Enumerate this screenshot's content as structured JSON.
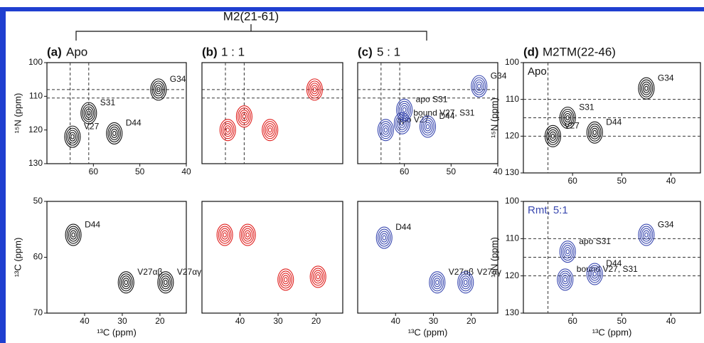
{
  "bracket_label": "M2(21-61)",
  "chart_data": [
    {
      "type": "contour",
      "panel_letter": "(a)",
      "title": "Apo",
      "ylabel": "¹⁵N (ppm)",
      "xlim": [
        70,
        40
      ],
      "ylim": [
        100,
        130
      ],
      "xticks": [
        60,
        50,
        40
      ],
      "yticks": [
        100,
        110,
        120,
        130
      ],
      "vlines": [
        65,
        61
      ],
      "hlines": [
        108,
        110.5
      ],
      "color": "#111111",
      "peaks": {
        "x": [
          64.5,
          61,
          55.5,
          46
        ],
        "y": [
          122,
          115,
          121,
          108
        ],
        "labels": [
          "V27",
          "S31",
          "D44",
          "G34"
        ]
      }
    },
    {
      "type": "contour",
      "panel_letter": "(b)",
      "title": "1 : 1",
      "xlim": [
        70,
        40
      ],
      "ylim": [
        100,
        130
      ],
      "vlines": [
        65,
        61
      ],
      "hlines": [
        108,
        110.5
      ],
      "color": "#e0201e",
      "peaks": {
        "x": [
          64.5,
          61,
          55.5,
          46
        ],
        "y": [
          120,
          116,
          120,
          108
        ],
        "labels": [
          null,
          null,
          null,
          null
        ]
      }
    },
    {
      "type": "contour",
      "panel_letter": "(c)",
      "title": "5 : 1",
      "xlim": [
        70,
        40
      ],
      "ylim": [
        100,
        130
      ],
      "xticks": [
        60,
        50,
        40
      ],
      "vlines": [
        65,
        61
      ],
      "hlines": [
        108,
        110.5
      ],
      "color": "#3a49b0",
      "peaks": {
        "x": [
          64,
          60.5,
          60,
          55,
          44
        ],
        "y": [
          120,
          118,
          114,
          119,
          107
        ],
        "labels": [
          "apo V27",
          "bound V27, S31",
          "apo S31",
          "D44",
          "G34"
        ]
      }
    },
    {
      "type": "contour",
      "panel_letter": "(d)",
      "title": "M2TM(22-46)",
      "inset": "Apo",
      "ylabel": "¹⁵N (ppm)",
      "xlim": [
        70,
        34
      ],
      "ylim": [
        100,
        130
      ],
      "xticks": [
        60,
        50,
        40
      ],
      "yticks": [
        100,
        110,
        120,
        130
      ],
      "vlines": [
        65
      ],
      "hlines": [
        110,
        115,
        120
      ],
      "color": "#111111",
      "peaks": {
        "x": [
          64,
          61,
          55.5,
          45
        ],
        "y": [
          120,
          115,
          119,
          107
        ],
        "labels": [
          "V27",
          "S31",
          "D44",
          "G34"
        ]
      }
    },
    {
      "type": "contour",
      "ylabel": "¹³C (ppm)",
      "xlabel": "¹³C (ppm)",
      "xlim": [
        50,
        13
      ],
      "ylim": [
        50,
        70
      ],
      "xticks": [
        40,
        30,
        20
      ],
      "yticks": [
        50,
        60,
        70
      ],
      "color": "#111111",
      "peaks": {
        "x": [
          43,
          29,
          18.5
        ],
        "y": [
          56,
          64.5,
          64.5
        ],
        "labels": [
          "D44",
          "V27αβ",
          "V27αγ"
        ]
      }
    },
    {
      "type": "contour",
      "xlim": [
        50,
        13
      ],
      "ylim": [
        50,
        70
      ],
      "xticks": [
        40,
        30,
        20
      ],
      "color": "#e0201e",
      "peaks": {
        "x": [
          44,
          38,
          28,
          19.5
        ],
        "y": [
          56,
          56,
          64,
          63.5
        ],
        "labels": [
          null,
          null,
          null,
          null
        ]
      }
    },
    {
      "type": "contour",
      "xlabel": "¹³C (ppm)",
      "xlim": [
        50,
        13
      ],
      "ylim": [
        50,
        70
      ],
      "xticks": [
        40,
        30,
        20
      ],
      "color": "#3a49b0",
      "peaks": {
        "x": [
          43,
          29,
          21.5
        ],
        "y": [
          56.5,
          64.5,
          64.5
        ],
        "labels": [
          "D44",
          "V27αβ",
          "V27αγ"
        ]
      }
    },
    {
      "type": "contour",
      "inset": "Rmt, 5:1",
      "ylabel": "¹⁵N (ppm)",
      "xlabel": "¹³C (ppm)",
      "xlim": [
        70,
        34
      ],
      "ylim": [
        100,
        130
      ],
      "xticks": [
        60,
        50,
        40
      ],
      "yticks": [
        100,
        110,
        120,
        130
      ],
      "vlines": [
        65
      ],
      "hlines": [
        110,
        115,
        120
      ],
      "color": "#3a49b0",
      "peaks": {
        "x": [
          61,
          61.5,
          55.5,
          45
        ],
        "y": [
          113.5,
          121,
          119.5,
          109
        ],
        "labels": [
          "apo S31",
          "bound V27, S31",
          "D44",
          "G34"
        ]
      }
    }
  ]
}
